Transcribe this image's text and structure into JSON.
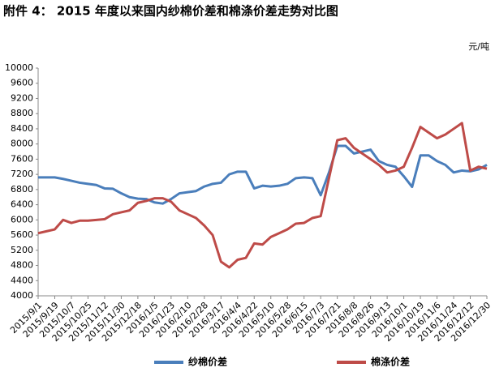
{
  "chart_data": {
    "type": "line",
    "title": "附件 4： 2015 年度以来国内纱棉价差和棉涤价差走势对比图",
    "unit": "元/吨",
    "categories": [
      "2015/9/1",
      null,
      "2015/9/19",
      null,
      "2015/10/7",
      null,
      "2015/10/25",
      null,
      "2015/11/12",
      null,
      "2015/11/30",
      null,
      "2015/12/18",
      null,
      "2016/1/5",
      null,
      "2016/1/23",
      null,
      "2016/2/10",
      null,
      "2016/2/28",
      null,
      "2016/3/17",
      null,
      "2016/4/4",
      null,
      "2016/4/22",
      null,
      "2016/5/10",
      null,
      "2016/5/28",
      null,
      "2016/6/15",
      null,
      "2016/7/3",
      null,
      "2016/7/21",
      null,
      "2016/8/8",
      null,
      "2016/8/26",
      null,
      "2016/9/13",
      null,
      "2016/10/1",
      null,
      "2016/10/19",
      null,
      "2016/11/6",
      null,
      "2016/11/24",
      null,
      "2016/12/12",
      null,
      "2016/12/30"
    ],
    "series": [
      {
        "name": "纱棉价差",
        "color": "#4a7ebb",
        "values": [
          7120,
          7120,
          7120,
          7080,
          7030,
          6980,
          6950,
          6920,
          6830,
          6820,
          6700,
          6600,
          6560,
          6550,
          6460,
          6430,
          6550,
          6700,
          6730,
          6760,
          6880,
          6950,
          6980,
          7200,
          7270,
          7270,
          6830,
          6900,
          6880,
          6900,
          6950,
          7100,
          7120,
          7100,
          6650,
          7250,
          7950,
          7950,
          7750,
          7800,
          7850,
          7550,
          7450,
          7400,
          7150,
          6870,
          7700,
          7700,
          7550,
          7450,
          7250,
          7300,
          7280,
          7330,
          7450
        ]
      },
      {
        "name": "棉涤价差",
        "color": "#be4b48",
        "values": [
          5650,
          5700,
          5750,
          6000,
          5920,
          5980,
          5980,
          6000,
          6020,
          6150,
          6200,
          6250,
          6450,
          6500,
          6570,
          6570,
          6480,
          6250,
          6150,
          6050,
          5850,
          5600,
          4900,
          4750,
          4950,
          5000,
          5380,
          5350,
          5550,
          5650,
          5750,
          5900,
          5920,
          6050,
          6100,
          7100,
          8100,
          8150,
          7900,
          7750,
          7600,
          7450,
          7250,
          7300,
          7400,
          7900,
          8450,
          8300,
          8150,
          8250,
          8400,
          8550,
          7300,
          7400,
          7350
        ]
      }
    ],
    "ylim": [
      4000,
      10000
    ],
    "yticks": [
      4000,
      4400,
      4800,
      5200,
      5600,
      6000,
      6400,
      6800,
      7200,
      7600,
      8000,
      8400,
      8800,
      9200,
      9600,
      10000
    ],
    "grid": false
  }
}
